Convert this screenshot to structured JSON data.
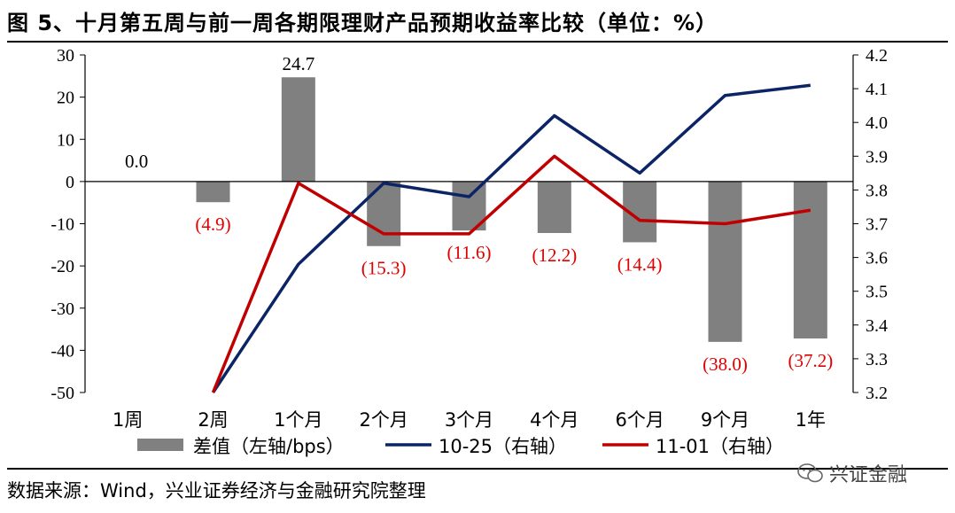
{
  "title": "图 5、十月第五周与前一周各期限理财产品预期收益率比较（单位：%）",
  "source": "数据来源：Wind，兴业证券经济与金融研究院整理",
  "watermark": "兴证金融",
  "colors": {
    "bar": "#808080",
    "line_1025": "#0b2466",
    "line_1101": "#c00000",
    "negative_label": "#e00000"
  },
  "chart_data": {
    "type": "bar",
    "categories": [
      "1周",
      "2周",
      "1个月",
      "2个月",
      "3个月",
      "4个月",
      "6个月",
      "9个月",
      "1年"
    ],
    "left_axis": {
      "ylim": [
        -50,
        30
      ],
      "ticks": [
        30,
        20,
        10,
        0,
        -10,
        -20,
        -30,
        -40,
        -50
      ]
    },
    "right_axis": {
      "ylim": [
        3.2,
        4.2
      ],
      "ticks": [
        "4.2",
        "4.1",
        "4.0",
        "3.9",
        "3.8",
        "3.7",
        "3.6",
        "3.5",
        "3.4",
        "3.3",
        "3.2"
      ]
    },
    "series": [
      {
        "name": "差值（左轴/bps）",
        "type": "bar",
        "axis": "left",
        "values": [
          0.0,
          -4.9,
          24.7,
          -15.3,
          -11.6,
          -12.2,
          -14.4,
          -38.0,
          -37.2
        ],
        "labels": [
          "0.0",
          "(4.9)",
          "24.7",
          "(15.3)",
          "(11.6)",
          "(12.2)",
          "(14.4)",
          "(38.0)",
          "(37.2)"
        ]
      },
      {
        "name": "10-25（右轴）",
        "type": "line",
        "axis": "right",
        "values": [
          null,
          3.2,
          3.58,
          3.82,
          3.78,
          4.02,
          3.85,
          4.08,
          4.11
        ]
      },
      {
        "name": "11-01（右轴）",
        "type": "line",
        "axis": "right",
        "values": [
          null,
          3.2,
          3.82,
          3.67,
          3.67,
          3.9,
          3.71,
          3.7,
          3.74
        ]
      }
    ]
  }
}
